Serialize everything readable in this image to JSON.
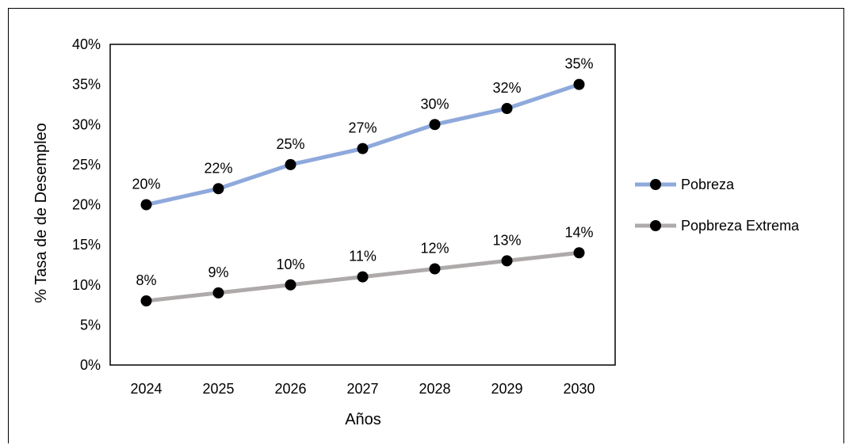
{
  "chart_data": {
    "type": "line",
    "title": "",
    "xlabel": "Años",
    "ylabel": "% Tasa de de Desempleo",
    "categories": [
      "2024",
      "2025",
      "2026",
      "2027",
      "2028",
      "2029",
      "2030"
    ],
    "ylim": [
      0,
      40
    ],
    "yticks": [
      "0%",
      "5%",
      "10%",
      "15%",
      "20%",
      "25%",
      "30%",
      "35%",
      "40%"
    ],
    "grid": false,
    "legend_position": "right",
    "series": [
      {
        "name": "Pobreza",
        "color": "#8EA9DB",
        "values": [
          20,
          22,
          25,
          27,
          30,
          32,
          35
        ],
        "labels": [
          "20%",
          "22%",
          "25%",
          "27%",
          "30%",
          "32%",
          "35%"
        ]
      },
      {
        "name": "Popbreza Extrema",
        "color": "#AEAAAA",
        "values": [
          8,
          9,
          10,
          11,
          12,
          13,
          14
        ],
        "labels": [
          "8%",
          "9%",
          "10%",
          "11%",
          "12%",
          "13%",
          "14%"
        ]
      }
    ],
    "marker_color": "#000000"
  }
}
